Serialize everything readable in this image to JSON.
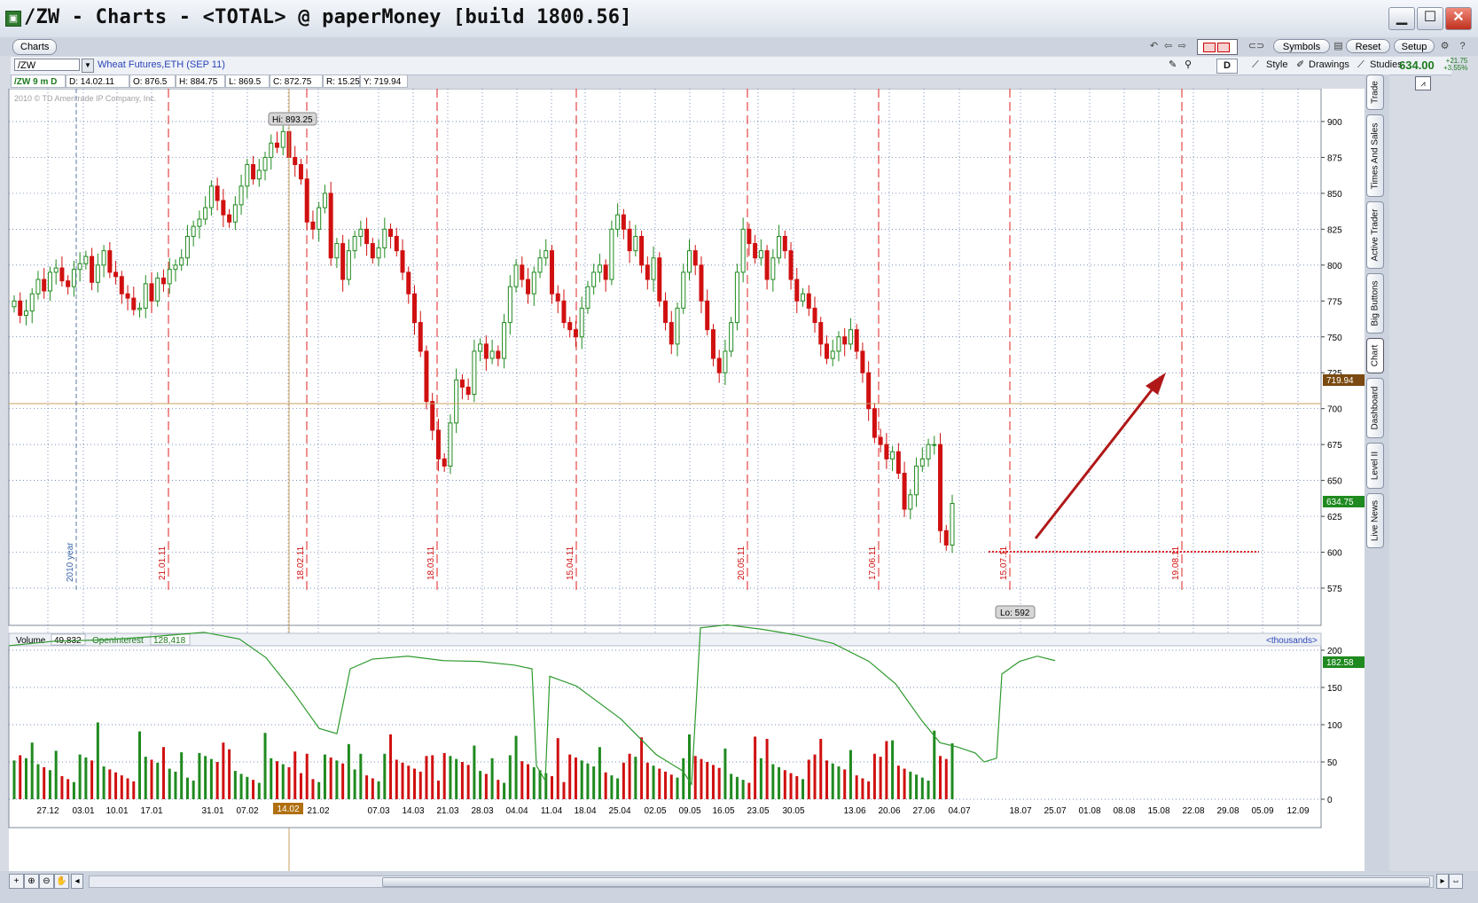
{
  "window": {
    "title": "/ZW - Charts - <TOTAL> @ paperMoney [build 1800.56]",
    "min": "▁",
    "max": "☐",
    "close": "✕"
  },
  "tabs": {
    "charts": "Charts"
  },
  "toolbar": {
    "symbols": "Symbols",
    "reset": "Reset",
    "setup": "Setup"
  },
  "symbol": {
    "input_value": "/ZW",
    "description": "Wheat Futures,ETH (SEP 11)",
    "aggregation": "D",
    "style": "Style",
    "drawings": "Drawings",
    "studies": "Studies",
    "last_price": "634.00",
    "change": "+21.75",
    "change_pct": "+3.55%"
  },
  "ohlc": {
    "symbol_period": "/ZW 9 m D",
    "date": "D: 14.02.11",
    "open": "O: 876.5",
    "high": "H: 884.75",
    "low": "L: 869.5",
    "close": "C: 872.75",
    "range": "R: 15.25",
    "y": "Y: 719.94"
  },
  "copyright": "2010 © TD Ameritrade IP Company, Inc.",
  "price_chart": {
    "hi_label": "Hi: 893.25",
    "lo_label": "Lo: 592",
    "cursor_price": "719.94",
    "last_price_tag": "634.75",
    "y_ticks": [
      900,
      875,
      850,
      825,
      800,
      775,
      750,
      725,
      700,
      675,
      650,
      625,
      600,
      575
    ],
    "year_marker": "2010 year",
    "expiry_dates": [
      "21.01.11",
      "18.02.11",
      "18.03.11",
      "15.04.11",
      "20.05.11",
      "17.06.11",
      "15.07.11",
      "19.08.11"
    ]
  },
  "volume_panel": {
    "volume_label": "Volume",
    "volume_value": "49,832",
    "oi_label": "OpenInterest",
    "oi_value": "128,418",
    "units": "<thousands>",
    "y_ticks": [
      200,
      150,
      100,
      50,
      0
    ],
    "oi_tag": "182.58"
  },
  "x_axis": {
    "labels": [
      "27.12",
      "03.01",
      "10.01",
      "17.01",
      "31.01",
      "07.02",
      "14.02",
      "21.02",
      "07.03",
      "14.03",
      "21.03",
      "28.03",
      "04.04",
      "11.04",
      "18.04",
      "25.04",
      "02.05",
      "09.05",
      "16.05",
      "23.05",
      "30.05",
      "13.06",
      "20.06",
      "27.06",
      "04.07",
      "18.07",
      "25.07",
      "01.08",
      "08.08",
      "15.08",
      "22.08",
      "29.08",
      "05.09",
      "12.09"
    ],
    "highlighted": "14.02"
  },
  "sidebar": {
    "tabs": [
      "Trade",
      "Times And Sales",
      "Active Trader",
      "Big Buttons",
      "Chart",
      "Dashboard",
      "Level II",
      "Live News"
    ]
  },
  "colors": {
    "up": "#1f8a1f",
    "down": "#d01010",
    "oi_line": "#2e9a2e",
    "cursor": "#c8a060",
    "expiry": "#e02020"
  },
  "chart_data": {
    "type": "candlestick",
    "closes": [
      775,
      765,
      768,
      780,
      790,
      782,
      795,
      798,
      789,
      785,
      797,
      801,
      806,
      788,
      800,
      810,
      795,
      792,
      780,
      777,
      769,
      770,
      787,
      775,
      791,
      787,
      797,
      800,
      805,
      820,
      827,
      832,
      840,
      855,
      845,
      835,
      830,
      842,
      855,
      870,
      860,
      866,
      875,
      885,
      882,
      893,
      875,
      870,
      860,
      830,
      825,
      840,
      850,
      805,
      815,
      790,
      810,
      820,
      825,
      815,
      805,
      812,
      825,
      820,
      810,
      795,
      780,
      760,
      740,
      705,
      685,
      665,
      660,
      690,
      720,
      715,
      710,
      740,
      745,
      735,
      740,
      735,
      760,
      785,
      800,
      790,
      780,
      795,
      805,
      810,
      780,
      775,
      760,
      755,
      750,
      770,
      785,
      795,
      800,
      790,
      825,
      835,
      825,
      810,
      820,
      800,
      790,
      805,
      775,
      760,
      745,
      770,
      795,
      810,
      800,
      775,
      755,
      735,
      725,
      740,
      760,
      795,
      825,
      815,
      805,
      810,
      790,
      805,
      820,
      810,
      790,
      775,
      780,
      770,
      760,
      745,
      735,
      740,
      750,
      745,
      755,
      740,
      725,
      700,
      680,
      675,
      665,
      670,
      655,
      630,
      640,
      660,
      665,
      675,
      675,
      615,
      605,
      634
    ]
  }
}
